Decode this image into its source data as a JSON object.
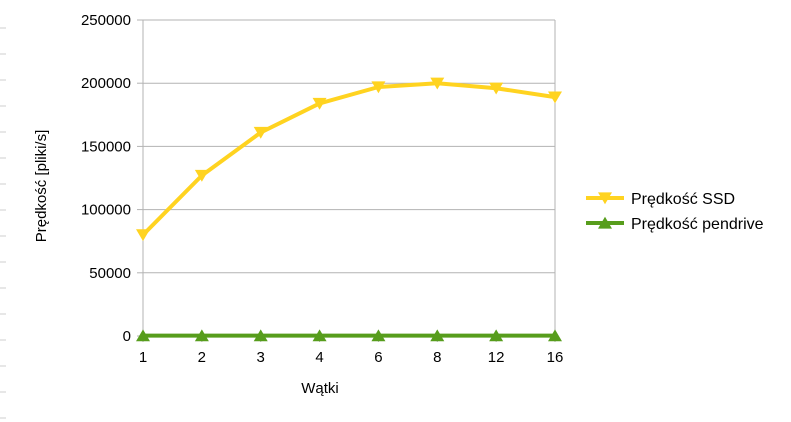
{
  "chart_data": {
    "type": "line",
    "categories": [
      "1",
      "2",
      "3",
      "4",
      "6",
      "8",
      "12",
      "16"
    ],
    "series": [
      {
        "name": "Prędkość SSD",
        "values": [
          80000,
          127000,
          161000,
          184000,
          197000,
          200000,
          196000,
          189000
        ],
        "color": "#ffd320",
        "marker": "triangle-down"
      },
      {
        "name": "Prędkość pendrive",
        "values": [
          300,
          300,
          300,
          300,
          300,
          300,
          300,
          300
        ],
        "color": "#579d1c",
        "marker": "triangle-up"
      }
    ],
    "title": "",
    "xlabel": "Wątki",
    "ylabel": "Prędkość [pliki/s]",
    "ylim": [
      0,
      250000
    ],
    "yticks": [
      "0",
      "50000",
      "100000",
      "150000",
      "200000",
      "250000"
    ],
    "grid": true,
    "legend_position": "right"
  }
}
